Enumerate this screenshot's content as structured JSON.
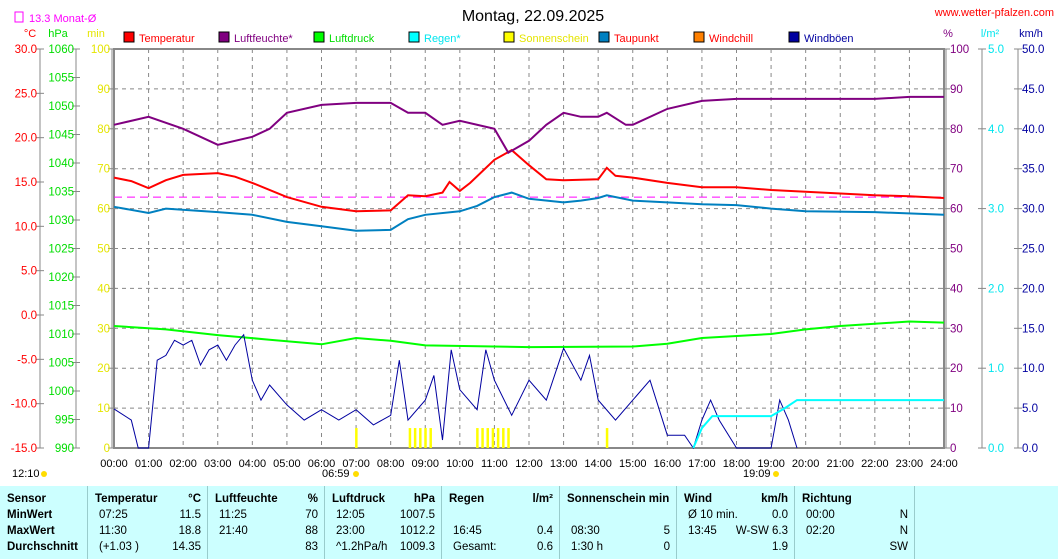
{
  "title": "Montag, 22.09.2025",
  "site": "www.wetter-pfalzen.com",
  "month_avg_label": "13.3 Monat-Ø",
  "units": {
    "c": "°C",
    "hpa": "hPa",
    "min": "min",
    "pct": "%",
    "lm2": "l/m²",
    "kmh": "km/h"
  },
  "legend": [
    {
      "label": "Temperatur",
      "color": "#ff0000",
      "text": "#ff0000"
    },
    {
      "label": "Luftfeuchte*",
      "color": "#800080",
      "text": "#800080"
    },
    {
      "label": "Luftdruck",
      "color": "#00ff00",
      "text": "#00dd00"
    },
    {
      "label": "Regen*",
      "color": "#00ffff",
      "text": "#00e5ee"
    },
    {
      "label": "Sonnenschein",
      "color": "#ffff00",
      "text": "#e5e500"
    },
    {
      "label": "Taupunkt",
      "color": "#0080c0",
      "text": "#ff0000"
    },
    {
      "label": "Windchill",
      "color": "#ff8000",
      "text": "#ff0000"
    },
    {
      "label": "Windböen",
      "color": "#0000a0",
      "text": "#0000a0"
    }
  ],
  "sun": {
    "sunrise_label": "06:59",
    "sunset_label": "19:09",
    "left_label": "12:10"
  },
  "chart_data": {
    "type": "line",
    "title": "Montag, 22.09.2025",
    "x_ticks": [
      "00:00",
      "01:00",
      "02:00",
      "03:00",
      "04:00",
      "05:00",
      "06:00",
      "07:00",
      "08:00",
      "09:00",
      "10:00",
      "11:00",
      "12:00",
      "13:00",
      "14:00",
      "15:00",
      "16:00",
      "17:00",
      "18:00",
      "19:00",
      "20:00",
      "21:00",
      "22:00",
      "23:00",
      "24:00"
    ],
    "xlim": [
      0,
      24
    ],
    "axes": {
      "temp": {
        "ylim": [
          -15,
          30
        ],
        "ticks": [
          "30.0",
          "25.0",
          "20.0",
          "15.0",
          "10.0",
          "5.0",
          "0.0",
          "-5.0",
          "-10.0",
          "-15.0"
        ]
      },
      "pressure": {
        "ylim": [
          990,
          1060
        ],
        "ticks": [
          "1060",
          "1055",
          "1050",
          "1045",
          "1040",
          "1035",
          "1030",
          "1025",
          "1020",
          "1015",
          "1010",
          "1005",
          "1000",
          "995",
          "990"
        ]
      },
      "sun_min": {
        "ylim": [
          0,
          100
        ],
        "ticks": [
          "100",
          "90",
          "80",
          "70",
          "60",
          "50",
          "40",
          "30",
          "20",
          "10",
          "0"
        ]
      },
      "humidity": {
        "ylim": [
          0,
          100
        ],
        "ticks": [
          "100",
          "90",
          "80",
          "70",
          "60",
          "50",
          "40",
          "30",
          "20",
          "10",
          "0"
        ]
      },
      "rain": {
        "ylim": [
          0,
          5
        ],
        "ticks": [
          "5.0",
          "4.0",
          "3.0",
          "2.0",
          "1.0",
          "0.0"
        ]
      },
      "wind": {
        "ylim": [
          0,
          50
        ],
        "ticks": [
          "50.0",
          "45.0",
          "40.0",
          "35.0",
          "30.0",
          "25.0",
          "20.0",
          "15.0",
          "10.0",
          "5.0",
          "0.0"
        ]
      }
    },
    "month_avg_temp": 13.3,
    "series": [
      {
        "name": "Temperatur",
        "axis": "temp",
        "color": "#ff0000",
        "points": [
          [
            0,
            15.5
          ],
          [
            0.5,
            15.1
          ],
          [
            1,
            14.3
          ],
          [
            1.5,
            15.2
          ],
          [
            2,
            15.8
          ],
          [
            3,
            16
          ],
          [
            3.5,
            15.6
          ],
          [
            4,
            14.9
          ],
          [
            5,
            13.3
          ],
          [
            6,
            12.2
          ],
          [
            7,
            11.7
          ],
          [
            8,
            11.8
          ],
          [
            8.5,
            13.5
          ],
          [
            9,
            13.4
          ],
          [
            9.5,
            13.8
          ],
          [
            9.7,
            15
          ],
          [
            10,
            14
          ],
          [
            10.3,
            14.9
          ],
          [
            11,
            17.5
          ],
          [
            11.5,
            18.6
          ],
          [
            12,
            16.9
          ],
          [
            12.5,
            15.3
          ],
          [
            13,
            15.2
          ],
          [
            14,
            15.3
          ],
          [
            14.25,
            16.6
          ],
          [
            14.5,
            15.7
          ],
          [
            15,
            15.5
          ],
          [
            16,
            14.9
          ],
          [
            17,
            14.4
          ],
          [
            18,
            14.4
          ],
          [
            19,
            14.1
          ],
          [
            20,
            13.9
          ],
          [
            21,
            13.7
          ],
          [
            22,
            13.5
          ],
          [
            23,
            13.4
          ],
          [
            24,
            13.2
          ]
        ]
      },
      {
        "name": "Luftfeuchte",
        "axis": "humidity",
        "color": "#800080",
        "points": [
          [
            0,
            81
          ],
          [
            1,
            83
          ],
          [
            2,
            80
          ],
          [
            3,
            76
          ],
          [
            4,
            78
          ],
          [
            4.5,
            80
          ],
          [
            5,
            84
          ],
          [
            6,
            86
          ],
          [
            7,
            86.5
          ],
          [
            8,
            86.5
          ],
          [
            8.5,
            84
          ],
          [
            9,
            84
          ],
          [
            9.5,
            81
          ],
          [
            10,
            82
          ],
          [
            11,
            80
          ],
          [
            11.4,
            74
          ],
          [
            12,
            77
          ],
          [
            12.5,
            81
          ],
          [
            13,
            84
          ],
          [
            13.5,
            83
          ],
          [
            14,
            83
          ],
          [
            14.25,
            84
          ],
          [
            14.8,
            81
          ],
          [
            15,
            81
          ],
          [
            16,
            85
          ],
          [
            17,
            87
          ],
          [
            18,
            87.5
          ],
          [
            22,
            87.5
          ],
          [
            23,
            88
          ],
          [
            24,
            88
          ]
        ]
      },
      {
        "name": "Luftdruck",
        "axis": "pressure",
        "color": "#00ff00",
        "points": [
          [
            0,
            1011.4
          ],
          [
            1.5,
            1010.8
          ],
          [
            3,
            1009.8
          ],
          [
            4.5,
            1009
          ],
          [
            6,
            1008.2
          ],
          [
            7,
            1009.3
          ],
          [
            8,
            1008.8
          ],
          [
            9,
            1008
          ],
          [
            12,
            1007.7
          ],
          [
            15,
            1007.8
          ],
          [
            16,
            1008.3
          ],
          [
            17,
            1009.3
          ],
          [
            19,
            1010
          ],
          [
            20,
            1010.8
          ],
          [
            21,
            1011.4
          ],
          [
            23,
            1012.2
          ],
          [
            24,
            1012
          ]
        ]
      },
      {
        "name": "Taupunkt",
        "axis": "temp",
        "color": "#0080c0",
        "points": [
          [
            0,
            12.2
          ],
          [
            1,
            11.5
          ],
          [
            1.5,
            12
          ],
          [
            3,
            11.6
          ],
          [
            4,
            11.3
          ],
          [
            5,
            10.5
          ],
          [
            6,
            10
          ],
          [
            7,
            9.5
          ],
          [
            8,
            9.6
          ],
          [
            8.5,
            10.8
          ],
          [
            9,
            11.3
          ],
          [
            10,
            11.7
          ],
          [
            10.5,
            12.3
          ],
          [
            11,
            13.3
          ],
          [
            11.5,
            13.8
          ],
          [
            12,
            13.1
          ],
          [
            13,
            12.7
          ],
          [
            13.5,
            12.9
          ],
          [
            14,
            13.2
          ],
          [
            14.25,
            13.5
          ],
          [
            15,
            12.9
          ],
          [
            16,
            12.7
          ],
          [
            17,
            12.5
          ],
          [
            18,
            12.4
          ],
          [
            19,
            12
          ],
          [
            20,
            11.7
          ],
          [
            22,
            11.6
          ],
          [
            24,
            11.3
          ]
        ]
      },
      {
        "name": "Windböen",
        "axis": "wind",
        "color": "#0000a0",
        "points": [
          [
            0,
            4.9
          ],
          [
            0.5,
            3.5
          ],
          [
            0.7,
            0
          ],
          [
            1,
            0
          ],
          [
            1.25,
            11
          ],
          [
            1.5,
            11.6
          ],
          [
            1.75,
            13.5
          ],
          [
            2,
            12.9
          ],
          [
            2.25,
            13.5
          ],
          [
            2.5,
            10.4
          ],
          [
            2.75,
            12.3
          ],
          [
            3,
            12.9
          ],
          [
            3.25,
            11
          ],
          [
            3.5,
            12.9
          ],
          [
            3.75,
            14.2
          ],
          [
            4,
            8.5
          ],
          [
            4.25,
            6
          ],
          [
            4.5,
            7.9
          ],
          [
            5,
            5.4
          ],
          [
            5.5,
            3.5
          ],
          [
            6,
            4.8
          ],
          [
            6.5,
            3.5
          ],
          [
            7,
            4.8
          ],
          [
            7.5,
            2.9
          ],
          [
            8,
            4.1
          ],
          [
            8.25,
            11
          ],
          [
            8.5,
            3.5
          ],
          [
            9,
            6
          ],
          [
            9.25,
            9.1
          ],
          [
            9.5,
            1
          ],
          [
            9.75,
            12.3
          ],
          [
            10,
            7.3
          ],
          [
            10.5,
            4.8
          ],
          [
            10.75,
            12.3
          ],
          [
            11,
            8.5
          ],
          [
            11.5,
            4.1
          ],
          [
            12,
            8.5
          ],
          [
            12.5,
            6
          ],
          [
            13,
            12.5
          ],
          [
            13.5,
            8.5
          ],
          [
            13.75,
            11.6
          ],
          [
            14,
            6
          ],
          [
            14.5,
            3.5
          ],
          [
            15,
            6
          ],
          [
            15.5,
            8.5
          ],
          [
            16,
            1.6
          ],
          [
            16.5,
            1.6
          ],
          [
            16.75,
            0
          ],
          [
            17,
            3.5
          ],
          [
            17.25,
            6
          ],
          [
            17.5,
            3.5
          ],
          [
            18,
            0
          ],
          [
            19,
            0
          ],
          [
            19.25,
            6
          ],
          [
            19.5,
            3.5
          ],
          [
            19.75,
            0
          ]
        ]
      },
      {
        "name": "Regen",
        "axis": "rain",
        "color": "#00ffff",
        "points": [
          [
            16.75,
            0
          ],
          [
            17,
            0.25
          ],
          [
            17.3,
            0.4
          ],
          [
            19,
            0.4
          ],
          [
            19.4,
            0.5
          ],
          [
            19.75,
            0.6
          ],
          [
            24,
            0.6
          ]
        ]
      }
    ],
    "sunshine_bars": {
      "axis": "sun_min",
      "color": "#ffff00",
      "hours": [
        7.0,
        8.55,
        8.7,
        8.85,
        9.0,
        9.15,
        10.5,
        10.65,
        10.8,
        10.95,
        11.1,
        11.25,
        11.4,
        14.25
      ],
      "value": 5
    }
  },
  "table": {
    "columns": [
      {
        "title": "Sensor",
        "unit": "",
        "rows": [
          "MinWert",
          "MaxWert",
          "Durchschnitt"
        ]
      },
      {
        "title": "Temperatur",
        "unit": "°C",
        "rows": [
          [
            "07:25",
            "11.5"
          ],
          [
            "11:30",
            "18.8"
          ],
          [
            "(+1.03 )",
            "14.35"
          ]
        ]
      },
      {
        "title": "Luftfeuchte",
        "unit": "%",
        "rows": [
          [
            "11:25",
            "70"
          ],
          [
            "21:40",
            "88"
          ],
          [
            "",
            "83"
          ]
        ]
      },
      {
        "title": "Luftdruck",
        "unit": "hPa",
        "rows": [
          [
            "12:05",
            "1007.5"
          ],
          [
            "23:00",
            "1012.2"
          ],
          [
            "^1.2hPa/h",
            "1009.3"
          ]
        ]
      },
      {
        "title": "Regen",
        "unit": "l/m²",
        "rows": [
          [
            "",
            ""
          ],
          [
            "16:45",
            "0.4"
          ],
          [
            "Gesamt:",
            "0.6"
          ]
        ]
      },
      {
        "title": "Sonnenschein min",
        "unit": "",
        "rows": [
          [
            "",
            ""
          ],
          [
            "08:30",
            "5"
          ],
          [
            "1:30 h",
            "0"
          ]
        ]
      },
      {
        "title": "Wind",
        "unit": "km/h",
        "rows": [
          [
            "Ø 10 min.",
            "0.0"
          ],
          [
            "13:45",
            "W-SW 6.3"
          ],
          [
            "",
            "1.9"
          ]
        ]
      },
      {
        "title": "Richtung",
        "unit": "",
        "rows": [
          [
            "00:00",
            "N"
          ],
          [
            "02:20",
            "N"
          ],
          [
            "",
            "SW"
          ]
        ]
      }
    ]
  }
}
